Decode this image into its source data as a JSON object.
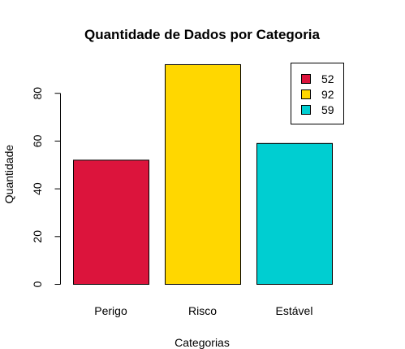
{
  "chart_data": {
    "type": "bar",
    "title": "Quantidade de Dados por Categoria",
    "xlabel": "Categorias",
    "ylabel": "Quantidade",
    "categories": [
      "Perigo",
      "Risco",
      "Estável"
    ],
    "values": [
      52,
      92,
      59
    ],
    "colors": [
      "#DC143C",
      "#FFD700",
      "#00CED1"
    ],
    "ylim": [
      0,
      94
    ],
    "yticks": [
      0,
      20,
      40,
      60,
      80
    ],
    "legend": {
      "position": "top-right",
      "entries": [
        "52",
        "92",
        "59"
      ]
    },
    "grid": false
  }
}
